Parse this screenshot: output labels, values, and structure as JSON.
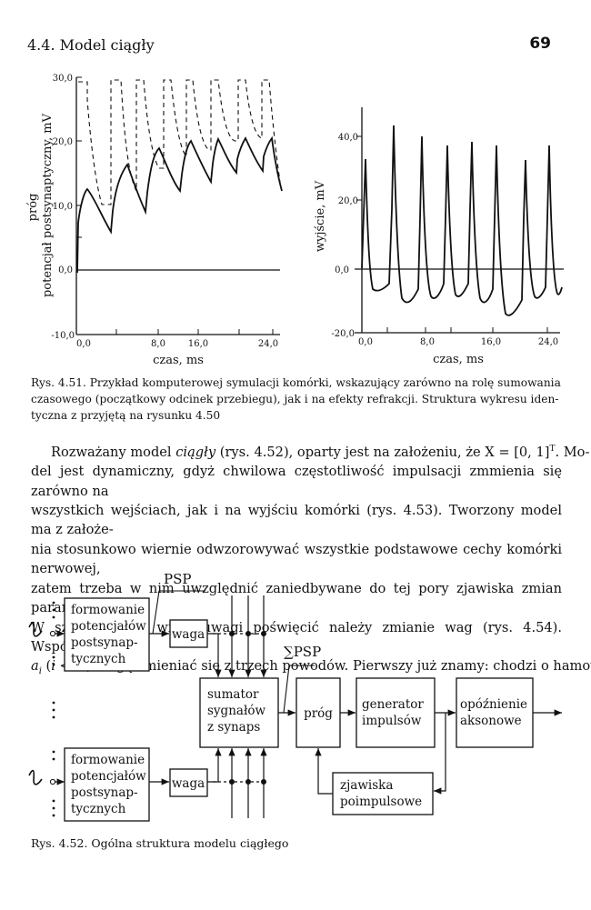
{
  "header": {
    "section": "4.4. Model ciągły",
    "page_number": "69"
  },
  "figure_4_51": {
    "left_plot": {
      "ylabel_lines": [
        "próg",
        "potencjał postsynaptyczny, mV"
      ],
      "yticks": [
        "30,0",
        "20,0",
        "10,0",
        "0,0",
        "-10,0"
      ],
      "xticks": [
        "0,0",
        "8,0",
        "16,0",
        "24,0"
      ],
      "xlabel": "czas, ms"
    },
    "right_plot": {
      "ylabel": "wyjście, mV",
      "yticks": [
        "40,0",
        "20,0",
        "0,0",
        "-20,0"
      ],
      "xticks": [
        "0,0",
        "8,0",
        "16,0",
        "24,0"
      ],
      "xlabel": "czas, ms"
    },
    "caption_lines": [
      "Rys. 4.51. Przykład komputerowej symulacji komórki, wskazujący zarówno na rolę sumowania",
      "czasowego (początkowy odcinek przebiegu), jak i na efekty refrakcji. Struktura wykresu iden-",
      "tyczna z przyjętą na rysunku 4.50"
    ]
  },
  "paragraph": {
    "l1a": "Rozważany model ",
    "l1b": "ciągły",
    "l1c": " (rys. 4.52), oparty jest na założeniu, że X = [0, 1]",
    "l1sup": "T",
    "l1d": ". Mo-",
    "l2": "del jest dynamiczny, gdyż chwilowa częstotliwość impulsacji zmmienia się zarówno na",
    "l3": "wszystkich wejściach, jak i na wyjściu komórki (rys. 4.53). Tworzony model ma z założe-",
    "l4": "nia stosunkowo wiernie odwzorowywać wszystkie podstawowe cechy komórki nerwowej,",
    "l5": "zatem trzeba w nim uwzględnić zaniedbywane do tej pory zjawiska zmian parametrów.",
    "l6": "W szczególności wiele uwagi poświęcić należy zmianie wag (rys. 4.54). Współczynniki",
    "l7a": "a",
    "l7sub": "i",
    "l7b": " (",
    "l7c": "i < N",
    "l7d": ") mogą zmieniać się z trzech powodów. Pierwszy już znamy: chodzi o hamowa-"
  },
  "figure_4_52": {
    "psp_label": "PSP",
    "sum_psp_label": "∑PSP",
    "block_formowanie_lines": [
      "formowanie",
      "potencjałów",
      "postsynap-",
      "tycznych"
    ],
    "block_waga": "waga",
    "block_sumator_lines": [
      "sumator",
      "sygnałów",
      "z synaps"
    ],
    "block_prog": "próg",
    "block_generator_lines": [
      "generator",
      "impulsów"
    ],
    "block_opoznienie_lines": [
      "opóźnienie",
      "aksonowe"
    ],
    "block_zjawiska_lines": [
      "zjawiska",
      "poimpulsowe"
    ],
    "caption": "Rys. 4.52. Ogólna struktura modelu ciągłego"
  }
}
